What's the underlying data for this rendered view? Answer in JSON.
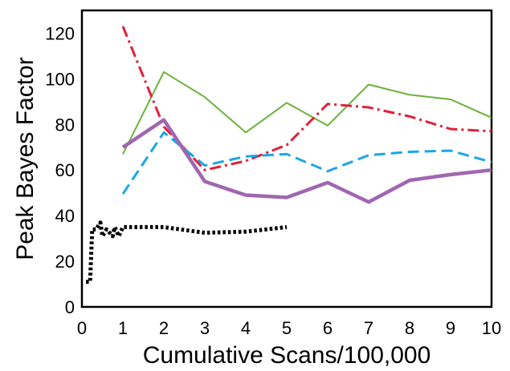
{
  "chart_data": {
    "type": "line",
    "title": "",
    "xlabel": "Cumulative Scans/100,000",
    "ylabel": "Peak Bayes Factor",
    "xlim": [
      0,
      10
    ],
    "ylim": [
      0,
      130
    ],
    "xticks": [
      "0",
      "1",
      "2",
      "3",
      "4",
      "5",
      "6",
      "7",
      "8",
      "9",
      "10"
    ],
    "yticks": [
      "0",
      "20",
      "40",
      "60",
      "80",
      "100",
      "120"
    ],
    "grid": false,
    "legend": "none",
    "series": [
      {
        "color": "#000000",
        "style": "dotted",
        "points": [
          [
            0.1,
            11
          ],
          [
            0.2,
            11
          ],
          [
            0.25,
            34
          ],
          [
            0.35,
            34
          ],
          [
            0.45,
            37
          ],
          [
            0.5,
            31
          ],
          [
            0.6,
            34
          ],
          [
            0.75,
            31
          ],
          [
            0.8,
            35
          ],
          [
            0.9,
            31
          ],
          [
            1.0,
            35
          ],
          [
            2.0,
            35
          ],
          [
            3.0,
            32.5
          ],
          [
            4.0,
            33
          ],
          [
            5.0,
            35
          ]
        ]
      },
      {
        "color": "#6ab23c",
        "style": "solid",
        "points": [
          [
            1,
            67
          ],
          [
            2,
            103
          ],
          [
            3,
            92
          ],
          [
            4,
            76.5
          ],
          [
            5,
            89.5
          ],
          [
            6,
            79.5
          ],
          [
            7,
            97.5
          ],
          [
            8,
            93
          ],
          [
            9,
            91
          ],
          [
            10,
            83
          ]
        ]
      },
      {
        "color": "#e0203a",
        "style": "dashdot",
        "points": [
          [
            1,
            123
          ],
          [
            2,
            79
          ],
          [
            3,
            60
          ],
          [
            4,
            64
          ],
          [
            5,
            71
          ],
          [
            6,
            89
          ],
          [
            7,
            87.5
          ],
          [
            8,
            83.5
          ],
          [
            9,
            78
          ],
          [
            10,
            77
          ]
        ]
      },
      {
        "color": "#1aa7e6",
        "style": "dashed",
        "points": [
          [
            1,
            49.5
          ],
          [
            2,
            76.5
          ],
          [
            3,
            62
          ],
          [
            4,
            66
          ],
          [
            5,
            67
          ],
          [
            6,
            59.5
          ],
          [
            7,
            66.5
          ],
          [
            8,
            68
          ],
          [
            9,
            68.5
          ],
          [
            10,
            63.5
          ]
        ]
      },
      {
        "color": "#a066b0",
        "style": "thick",
        "points": [
          [
            1,
            70
          ],
          [
            2,
            82
          ],
          [
            3,
            55
          ],
          [
            4,
            49
          ],
          [
            5,
            48
          ],
          [
            6,
            54.5
          ],
          [
            7,
            46
          ],
          [
            8,
            55.5
          ],
          [
            9,
            58
          ],
          [
            10,
            60
          ]
        ]
      }
    ]
  }
}
